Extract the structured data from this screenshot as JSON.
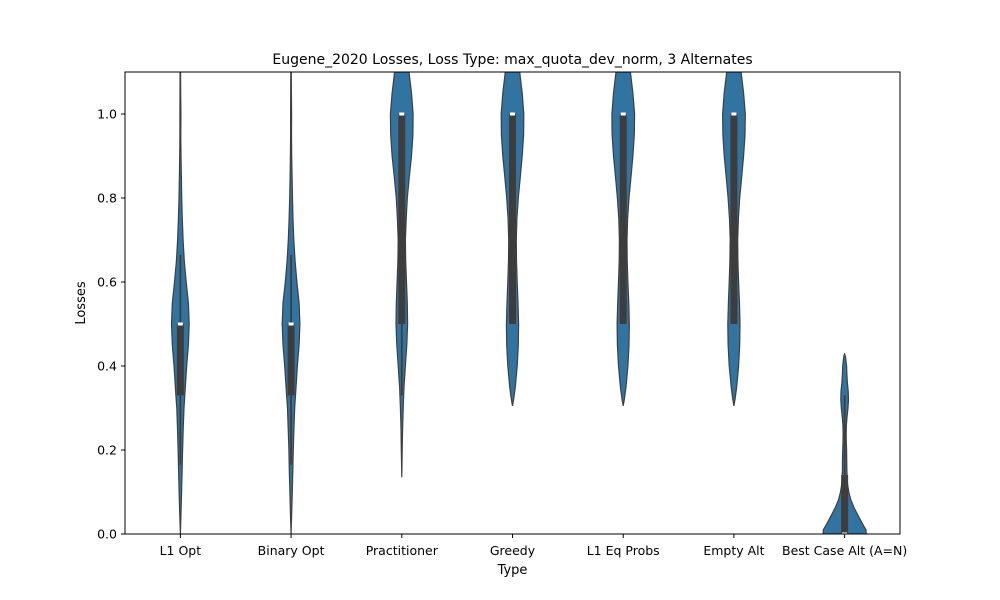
{
  "chart_data": {
    "type": "violin",
    "title": "Eugene_2020 Losses, Loss Type: max_quota_dev_norm, 3 Alternates",
    "xlabel": "Type",
    "ylabel": "Losses",
    "ylim": [
      0,
      1.1
    ],
    "yticks": [
      0.0,
      0.2,
      0.4,
      0.6,
      0.8,
      1.0
    ],
    "ytick_labels": [
      "0.0",
      "0.2",
      "0.4",
      "0.6",
      "0.8",
      "1.0"
    ],
    "categories": [
      "L1 Opt",
      "Binary Opt",
      "Practitioner",
      "Greedy",
      "L1 Eq Probs",
      "Empty Alt",
      "Best Case Alt (A=N)"
    ],
    "color": "#3274a1",
    "box_color": "#3d3d3d",
    "violins": [
      {
        "name": "L1 Opt",
        "whisker": [
          0.165,
          0.665
        ],
        "box": [
          0.33,
          0.5
        ],
        "median": 0.5,
        "profile": [
          [
            0.0,
            0.0
          ],
          [
            0.05,
            0.012
          ],
          [
            0.1,
            0.022
          ],
          [
            0.15,
            0.032
          ],
          [
            0.2,
            0.04
          ],
          [
            0.25,
            0.052
          ],
          [
            0.3,
            0.065
          ],
          [
            0.33,
            0.08
          ],
          [
            0.4,
            0.115
          ],
          [
            0.45,
            0.145
          ],
          [
            0.5,
            0.16
          ],
          [
            0.55,
            0.145
          ],
          [
            0.6,
            0.105
          ],
          [
            0.65,
            0.072
          ],
          [
            0.7,
            0.05
          ],
          [
            0.75,
            0.035
          ],
          [
            0.8,
            0.025
          ],
          [
            0.85,
            0.018
          ],
          [
            0.9,
            0.012
          ],
          [
            0.95,
            0.008
          ],
          [
            1.0,
            0.009
          ],
          [
            1.05,
            0.006
          ],
          [
            1.1,
            0.004
          ]
        ]
      },
      {
        "name": "Binary Opt",
        "whisker": [
          0.165,
          0.665
        ],
        "box": [
          0.33,
          0.5
        ],
        "median": 0.5,
        "profile": [
          [
            0.0,
            0.0
          ],
          [
            0.05,
            0.012
          ],
          [
            0.1,
            0.022
          ],
          [
            0.15,
            0.032
          ],
          [
            0.2,
            0.04
          ],
          [
            0.25,
            0.052
          ],
          [
            0.3,
            0.065
          ],
          [
            0.33,
            0.08
          ],
          [
            0.4,
            0.115
          ],
          [
            0.45,
            0.145
          ],
          [
            0.5,
            0.16
          ],
          [
            0.55,
            0.145
          ],
          [
            0.6,
            0.105
          ],
          [
            0.65,
            0.072
          ],
          [
            0.7,
            0.05
          ],
          [
            0.75,
            0.035
          ],
          [
            0.8,
            0.025
          ],
          [
            0.85,
            0.018
          ],
          [
            0.9,
            0.012
          ],
          [
            0.95,
            0.008
          ],
          [
            1.0,
            0.009
          ],
          [
            1.05,
            0.006
          ],
          [
            1.1,
            0.004
          ]
        ]
      },
      {
        "name": "Practitioner",
        "whisker": [
          0.33,
          1.0
        ],
        "box": [
          0.5,
          1.0
        ],
        "median": 1.0,
        "profile": [
          [
            0.135,
            0.0
          ],
          [
            0.2,
            0.008
          ],
          [
            0.25,
            0.015
          ],
          [
            0.3,
            0.025
          ],
          [
            0.35,
            0.04
          ],
          [
            0.4,
            0.065
          ],
          [
            0.45,
            0.09
          ],
          [
            0.5,
            0.105
          ],
          [
            0.55,
            0.1
          ],
          [
            0.6,
            0.085
          ],
          [
            0.65,
            0.07
          ],
          [
            0.7,
            0.065
          ],
          [
            0.75,
            0.08
          ],
          [
            0.8,
            0.1
          ],
          [
            0.85,
            0.135
          ],
          [
            0.9,
            0.175
          ],
          [
            0.95,
            0.2
          ],
          [
            1.0,
            0.205
          ],
          [
            1.05,
            0.175
          ],
          [
            1.1,
            0.13
          ]
        ]
      },
      {
        "name": "Greedy",
        "whisker": [
          0.5,
          1.0
        ],
        "box": [
          0.5,
          1.0
        ],
        "median": 1.0,
        "profile": [
          [
            0.305,
            0.0
          ],
          [
            0.32,
            0.02
          ],
          [
            0.35,
            0.05
          ],
          [
            0.4,
            0.085
          ],
          [
            0.45,
            0.105
          ],
          [
            0.5,
            0.11
          ],
          [
            0.55,
            0.1
          ],
          [
            0.6,
            0.085
          ],
          [
            0.65,
            0.072
          ],
          [
            0.7,
            0.068
          ],
          [
            0.75,
            0.08
          ],
          [
            0.8,
            0.105
          ],
          [
            0.85,
            0.14
          ],
          [
            0.9,
            0.175
          ],
          [
            0.95,
            0.2
          ],
          [
            1.0,
            0.205
          ],
          [
            1.05,
            0.175
          ],
          [
            1.1,
            0.13
          ]
        ]
      },
      {
        "name": "L1 Eq Probs",
        "whisker": [
          0.5,
          1.0
        ],
        "box": [
          0.5,
          1.0
        ],
        "median": 1.0,
        "profile": [
          [
            0.305,
            0.0
          ],
          [
            0.32,
            0.02
          ],
          [
            0.35,
            0.05
          ],
          [
            0.4,
            0.085
          ],
          [
            0.45,
            0.105
          ],
          [
            0.5,
            0.11
          ],
          [
            0.55,
            0.1
          ],
          [
            0.6,
            0.085
          ],
          [
            0.65,
            0.072
          ],
          [
            0.7,
            0.068
          ],
          [
            0.75,
            0.08
          ],
          [
            0.8,
            0.105
          ],
          [
            0.85,
            0.14
          ],
          [
            0.9,
            0.175
          ],
          [
            0.95,
            0.2
          ],
          [
            1.0,
            0.205
          ],
          [
            1.05,
            0.175
          ],
          [
            1.1,
            0.13
          ]
        ]
      },
      {
        "name": "Empty Alt",
        "whisker": [
          0.5,
          1.0
        ],
        "box": [
          0.5,
          1.0
        ],
        "median": 1.0,
        "profile": [
          [
            0.305,
            0.0
          ],
          [
            0.32,
            0.02
          ],
          [
            0.35,
            0.05
          ],
          [
            0.4,
            0.085
          ],
          [
            0.45,
            0.105
          ],
          [
            0.5,
            0.11
          ],
          [
            0.55,
            0.1
          ],
          [
            0.6,
            0.085
          ],
          [
            0.65,
            0.072
          ],
          [
            0.7,
            0.068
          ],
          [
            0.75,
            0.08
          ],
          [
            0.8,
            0.105
          ],
          [
            0.85,
            0.14
          ],
          [
            0.9,
            0.175
          ],
          [
            0.95,
            0.2
          ],
          [
            1.0,
            0.205
          ],
          [
            1.05,
            0.175
          ],
          [
            1.1,
            0.13
          ]
        ]
      },
      {
        "name": "Best Case Alt (A=N)",
        "whisker": [
          0.0,
          0.33
        ],
        "box": [
          0.0,
          0.14
        ],
        "median": 0.0,
        "profile": [
          [
            0.0,
            0.39
          ],
          [
            0.01,
            0.385
          ],
          [
            0.02,
            0.34
          ],
          [
            0.04,
            0.26
          ],
          [
            0.06,
            0.18
          ],
          [
            0.08,
            0.115
          ],
          [
            0.1,
            0.075
          ],
          [
            0.12,
            0.052
          ],
          [
            0.15,
            0.04
          ],
          [
            0.18,
            0.038
          ],
          [
            0.2,
            0.035
          ],
          [
            0.22,
            0.03
          ],
          [
            0.24,
            0.028
          ],
          [
            0.26,
            0.032
          ],
          [
            0.28,
            0.045
          ],
          [
            0.3,
            0.06
          ],
          [
            0.32,
            0.07
          ],
          [
            0.34,
            0.065
          ],
          [
            0.36,
            0.05
          ],
          [
            0.38,
            0.04
          ],
          [
            0.4,
            0.035
          ],
          [
            0.42,
            0.018
          ],
          [
            0.43,
            0.0
          ]
        ]
      }
    ]
  }
}
